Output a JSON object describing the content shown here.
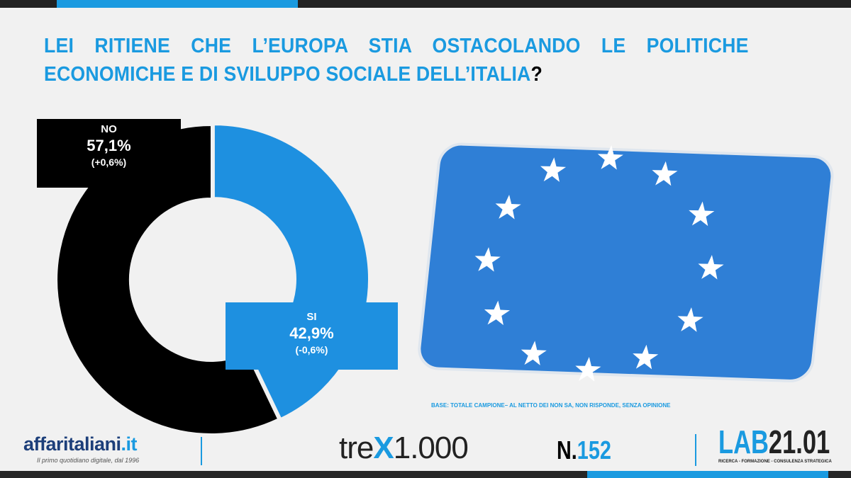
{
  "title": {
    "text": "LEI RITIENE CHE L’EUROPA STIA OSTACOLANDO LE POLITICHE ECONOMICHE E DI SVILUPPO SOCIALE DELL’ITALIA",
    "qmark": "?"
  },
  "chart_data": {
    "type": "pie",
    "variant": "donut",
    "title": "LEI RITIENE CHE L’EUROPA STIA OSTACOLANDO LE POLITICHE ECONOMICHE E DI SVILUPPO SOCIALE DELL’ITALIA?",
    "slices": [
      {
        "name": "SI",
        "value": 42.9,
        "label": "42,9%",
        "change": "(-0,6%)",
        "color": "#1e90e0"
      },
      {
        "name": "NO",
        "value": 57.1,
        "label": "57,1%",
        "change": "(+0,6%)",
        "color": "#000000"
      }
    ]
  },
  "base_note": "BASE: TOTALE CAMPIONE– AL NETTO DEI NON SA, NON RISPONDE, SENZA OPINIONE",
  "footer": {
    "affari": {
      "name": "affaritaliani",
      "tld": ".it",
      "tagline": "Il primo quotidiano digitale, dal 1996"
    },
    "trex": {
      "pre": "tre",
      "x": "X",
      "post": "1.000"
    },
    "number": {
      "prefix": "N.",
      "value": "152"
    },
    "lab": {
      "a": "LAB",
      "b": "21.01",
      "tagline": "RICERCA - FORMAZIONE - CONSULENZA STRATEGICA"
    }
  },
  "colors": {
    "accent": "#1a9ae0",
    "flag_blue": "#2f7fd6",
    "star": "#ffffff"
  },
  "image": {
    "description_icon": "eu-flag-photo"
  }
}
